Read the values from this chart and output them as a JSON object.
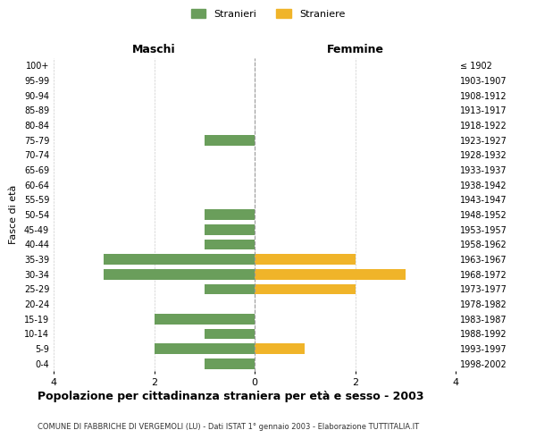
{
  "age_groups": [
    "0-4",
    "5-9",
    "10-14",
    "15-19",
    "20-24",
    "25-29",
    "30-34",
    "35-39",
    "40-44",
    "45-49",
    "50-54",
    "55-59",
    "60-64",
    "65-69",
    "70-74",
    "75-79",
    "80-84",
    "85-89",
    "90-94",
    "95-99",
    "100+"
  ],
  "birth_years": [
    "1998-2002",
    "1993-1997",
    "1988-1992",
    "1983-1987",
    "1978-1982",
    "1973-1977",
    "1968-1972",
    "1963-1967",
    "1958-1962",
    "1953-1957",
    "1948-1952",
    "1943-1947",
    "1938-1942",
    "1933-1937",
    "1928-1932",
    "1923-1927",
    "1918-1922",
    "1913-1917",
    "1908-1912",
    "1903-1907",
    "≤ 1902"
  ],
  "maschi": [
    1,
    2,
    1,
    2,
    0,
    1,
    3,
    3,
    1,
    1,
    1,
    0,
    0,
    0,
    0,
    1,
    0,
    0,
    0,
    0,
    0
  ],
  "femmine": [
    0,
    1,
    0,
    0,
    0,
    2,
    3,
    2,
    0,
    0,
    0,
    0,
    0,
    0,
    0,
    0,
    0,
    0,
    0,
    0,
    0
  ],
  "color_maschi": "#6a9e5b",
  "color_femmine": "#f0b429",
  "title": "Popolazione per cittadinanza straniera per età e sesso - 2003",
  "subtitle": "COMUNE DI FABBRICHE DI VERGEMOLI (LU) - Dati ISTAT 1° gennaio 2003 - Elaborazione TUTTITALIA.IT",
  "ylabel_left": "Fasce di età",
  "legend_maschi": "Stranieri",
  "legend_femmine": "Straniere",
  "xlabel_left": "Maschi",
  "xlabel_right": "Femmine",
  "xlim": 4,
  "background_color": "#ffffff",
  "grid_color": "#cccccc"
}
